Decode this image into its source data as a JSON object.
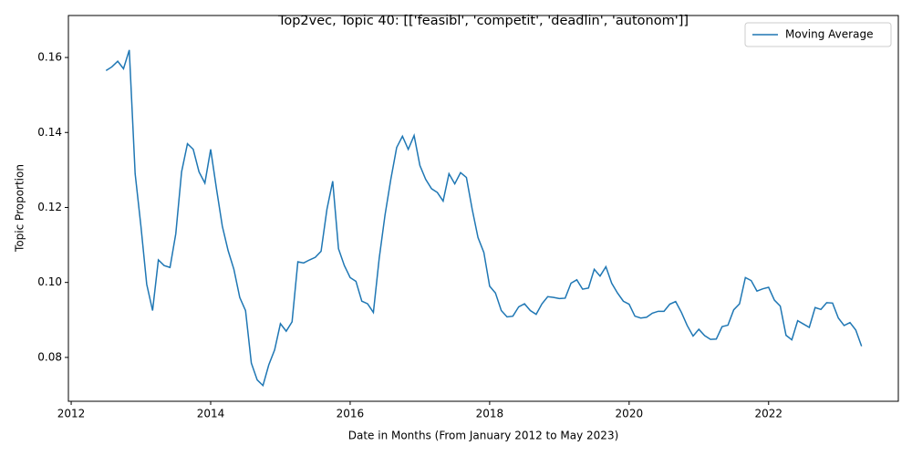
{
  "chart_data": {
    "type": "line",
    "title": "Top2vec, Topic 40: [['feasibl', 'competit', 'deadlin', 'autonom']]",
    "xlabel": "Date in Months (From January 2012 to May 2023)",
    "ylabel": "Topic Proportion",
    "x": [
      2012.5,
      2012.583,
      2012.667,
      2012.75,
      2012.833,
      2012.917,
      2013,
      2013.083,
      2013.167,
      2013.25,
      2013.333,
      2013.417,
      2013.5,
      2013.583,
      2013.667,
      2013.75,
      2013.833,
      2013.917,
      2014,
      2014.083,
      2014.167,
      2014.25,
      2014.333,
      2014.417,
      2014.5,
      2014.583,
      2014.667,
      2014.75,
      2014.833,
      2014.917,
      2015,
      2015.083,
      2015.167,
      2015.25,
      2015.333,
      2015.417,
      2015.5,
      2015.583,
      2015.667,
      2015.75,
      2015.833,
      2015.917,
      2016,
      2016.083,
      2016.167,
      2016.25,
      2016.333,
      2016.417,
      2016.5,
      2016.583,
      2016.667,
      2016.75,
      2016.833,
      2016.917,
      2017,
      2017.083,
      2017.167,
      2017.25,
      2017.333,
      2017.417,
      2017.5,
      2017.583,
      2017.667,
      2017.75,
      2017.833,
      2017.917,
      2018,
      2018.083,
      2018.167,
      2018.25,
      2018.333,
      2018.417,
      2018.5,
      2018.583,
      2018.667,
      2018.75,
      2018.833,
      2018.917,
      2019,
      2019.083,
      2019.167,
      2019.25,
      2019.333,
      2019.417,
      2019.5,
      2019.583,
      2019.667,
      2019.75,
      2019.833,
      2019.917,
      2020,
      2020.083,
      2020.167,
      2020.25,
      2020.333,
      2020.417,
      2020.5,
      2020.583,
      2020.667,
      2020.75,
      2020.833,
      2020.917,
      2021,
      2021.083,
      2021.167,
      2021.25,
      2021.333,
      2021.417,
      2021.5,
      2021.583,
      2021.667,
      2021.75,
      2021.833,
      2021.917,
      2022,
      2022.083,
      2022.167,
      2022.25,
      2022.333,
      2022.417,
      2022.5,
      2022.583,
      2022.667,
      2022.75,
      2022.833,
      2022.917,
      2023,
      2023.083,
      2023.167,
      2023.25,
      2023.333
    ],
    "series": [
      {
        "name": "Moving Average",
        "color": "#1f77b4",
        "values": [
          0.1565,
          0.1575,
          0.159,
          0.157,
          0.162,
          0.129,
          0.115,
          0.0995,
          0.0925,
          0.106,
          0.1045,
          0.104,
          0.113,
          0.1295,
          0.137,
          0.1355,
          0.1295,
          0.1265,
          0.1355,
          0.125,
          0.115,
          0.1085,
          0.1035,
          0.096,
          0.0925,
          0.0785,
          0.074,
          0.0725,
          0.078,
          0.082,
          0.089,
          0.087,
          0.0895,
          0.1055,
          0.1052,
          0.106,
          0.1067,
          0.1083,
          0.1195,
          0.127,
          0.109,
          0.1045,
          0.1013,
          0.1003,
          0.095,
          0.0943,
          0.092,
          0.1065,
          0.118,
          0.1275,
          0.136,
          0.139,
          0.1355,
          0.1392,
          0.1312,
          0.1275,
          0.125,
          0.124,
          0.1217,
          0.129,
          0.1263,
          0.1293,
          0.128,
          0.1195,
          0.112,
          0.108,
          0.099,
          0.0972,
          0.0925,
          0.0908,
          0.091,
          0.0935,
          0.0943,
          0.0925,
          0.0915,
          0.0943,
          0.0962,
          0.096,
          0.0957,
          0.0958,
          0.0998,
          0.1007,
          0.0982,
          0.0985,
          0.1035,
          0.1017,
          0.1042,
          0.0998,
          0.0972,
          0.095,
          0.0942,
          0.091,
          0.0905,
          0.0907,
          0.0918,
          0.0923,
          0.0923,
          0.0942,
          0.0949,
          0.092,
          0.0885,
          0.0857,
          0.0875,
          0.0858,
          0.0848,
          0.0849,
          0.0882,
          0.0886,
          0.0927,
          0.0943,
          0.1013,
          0.1005,
          0.0977,
          0.0983,
          0.0987,
          0.0953,
          0.0937,
          0.0859,
          0.0847,
          0.0898,
          0.0889,
          0.088,
          0.0933,
          0.0928,
          0.0946,
          0.0945,
          0.0905,
          0.0885,
          0.0893,
          0.0873,
          0.083
        ]
      }
    ],
    "xlim": [
      2011.96,
      2023.86
    ],
    "ylim": [
      0.0683,
      0.1712
    ],
    "xticks": [
      2012,
      2014,
      2016,
      2018,
      2020,
      2022
    ],
    "yticks": [
      0.08,
      {
        "value": 0.1,
        "label": "0.10"
      },
      0.12,
      0.14,
      0.16
    ],
    "grid": false,
    "legend": "upper right"
  }
}
